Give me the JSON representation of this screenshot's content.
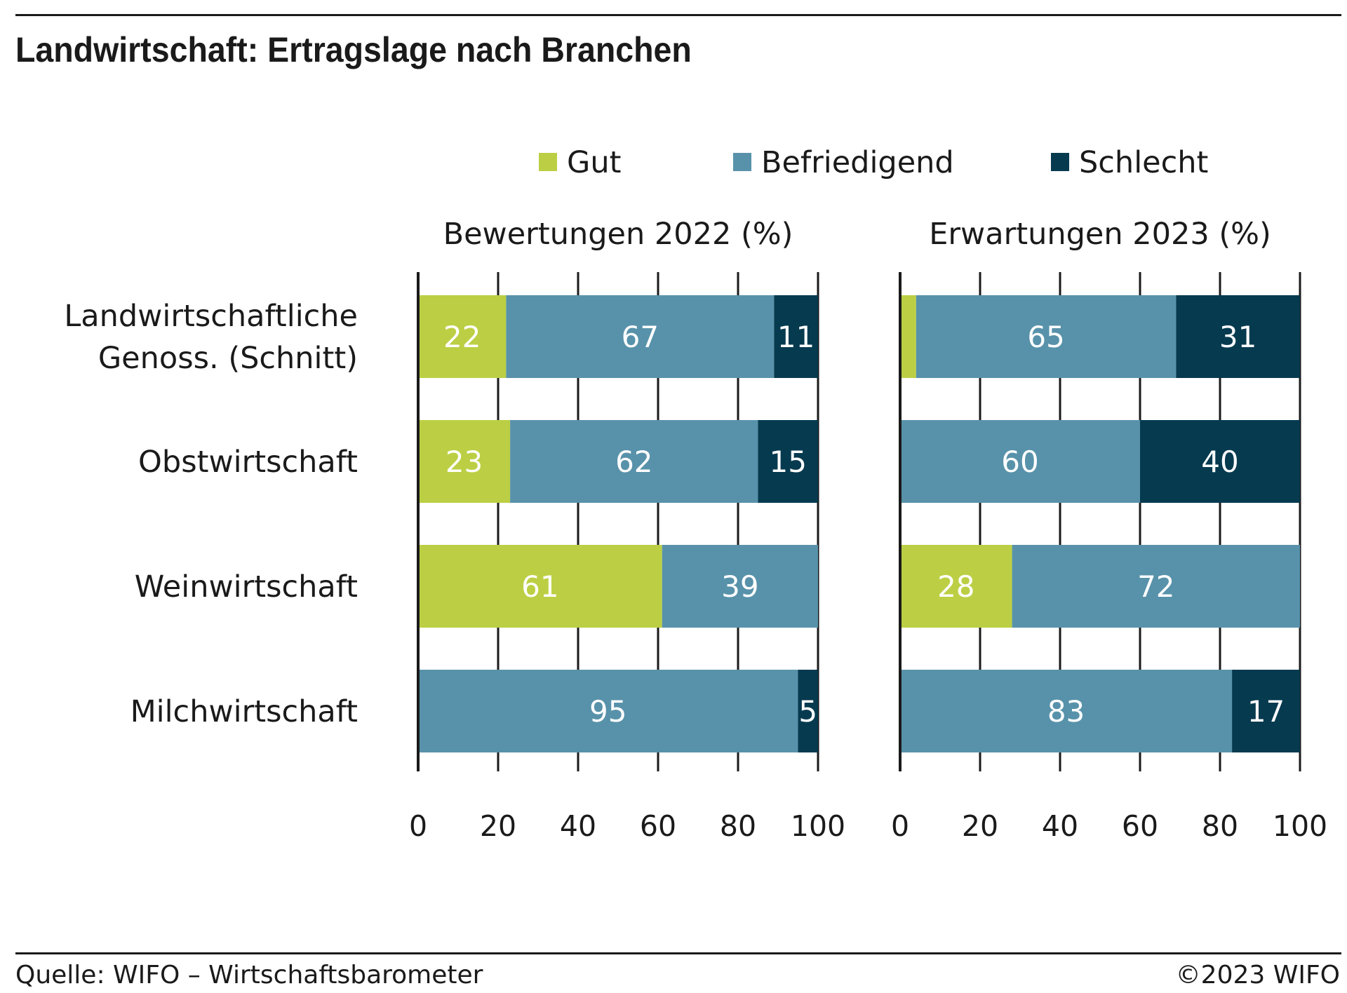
{
  "title": "Landwirtschaft: Ertragslage nach Branchen",
  "footer": {
    "source": "Quelle: WIFO – Wirtschaftsbarometer",
    "copyright": "©2023 WIFO"
  },
  "colors": {
    "Gut": "#bccf44",
    "Befriedigend": "#5892aa",
    "Schlecht": "#063a4f",
    "axis": "#1a1a1a"
  },
  "chart_data": {
    "type": "bar",
    "orientation": "horizontal",
    "stacked": true,
    "legend": {
      "position": "top",
      "entries": [
        "Gut",
        "Befriedigend",
        "Schlecht"
      ]
    },
    "categories": [
      "Landwirtschaftliche\nGenoss. (Schnitt)",
      "Obstwirtschaft",
      "Weinwirtschaft",
      "Milchwirtschaft"
    ],
    "grid": true,
    "xlim": [
      0,
      100
    ],
    "xticks": [
      0,
      20,
      40,
      60,
      80,
      100
    ],
    "panels": [
      {
        "title": "Bewertungen 2022 (%)",
        "series": [
          {
            "name": "Gut",
            "values": [
              22,
              23,
              61,
              0
            ]
          },
          {
            "name": "Befriedigend",
            "values": [
              67,
              62,
              39,
              95
            ]
          },
          {
            "name": "Schlecht",
            "values": [
              11,
              15,
              0,
              5
            ]
          }
        ]
      },
      {
        "title": "Erwartungen 2023 (%)",
        "series": [
          {
            "name": "Gut",
            "values": [
              4,
              0,
              28,
              0
            ]
          },
          {
            "name": "Befriedigend",
            "values": [
              65,
              60,
              72,
              83
            ]
          },
          {
            "name": "Schlecht",
            "values": [
              31,
              40,
              0,
              17
            ]
          }
        ]
      }
    ]
  }
}
